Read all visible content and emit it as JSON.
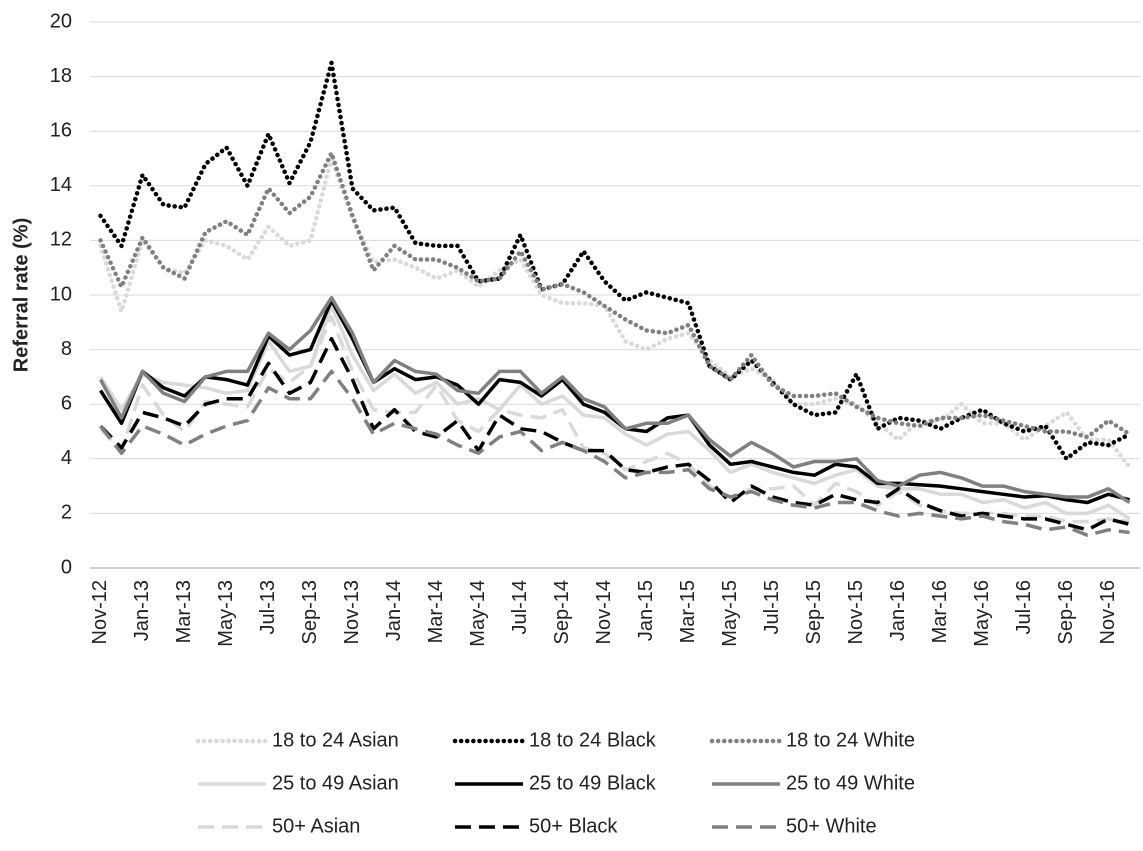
{
  "chart_data": {
    "type": "line",
    "y_label": "Referral rate (%)",
    "categories": [
      "Nov-12",
      null,
      "Jan-13",
      null,
      "Mar-13",
      null,
      "May-13",
      null,
      "Jul-13",
      null,
      "Sep-13",
      null,
      "Nov-13",
      null,
      "Jan-14",
      null,
      "Mar-14",
      null,
      "May-14",
      null,
      "Jul-14",
      null,
      "Sep-14",
      null,
      "Nov-14",
      null,
      "Jan-15",
      null,
      "Mar-15",
      null,
      "May-15",
      null,
      "Jul-15",
      null,
      "Sep-15",
      null,
      "Nov-15",
      null,
      "Jan-16",
      null,
      "Mar-16",
      null,
      "May-16",
      null,
      "Jul-16",
      null,
      "Sep-16",
      null,
      "Nov-16",
      null
    ],
    "ylim": [
      0,
      20
    ],
    "yticks": [
      0,
      2,
      4,
      6,
      8,
      10,
      12,
      14,
      16,
      18,
      20
    ],
    "grid": true,
    "series": [
      {
        "name": "18 to 24 Asian",
        "color": "#d9d9d9",
        "style": "dotted",
        "values": [
          11.8,
          9.4,
          12.0,
          11.0,
          10.8,
          12.0,
          11.8,
          11.3,
          12.5,
          11.8,
          12.0,
          15.0,
          12.8,
          11.2,
          11.3,
          11.0,
          10.6,
          10.9,
          10.3,
          10.9,
          11.3,
          10.0,
          9.7,
          9.7,
          9.6,
          8.3,
          8.0,
          8.4,
          8.6,
          7.6,
          7.0,
          7.3,
          6.9,
          6.0,
          6.0,
          6.2,
          6.0,
          5.3,
          4.7,
          5.4,
          5.4,
          6.0,
          5.3,
          5.3,
          4.7,
          5.2,
          5.7,
          4.7,
          4.7,
          3.7
        ]
      },
      {
        "name": "18 to 24 Black",
        "color": "#000000",
        "style": "dotted",
        "values": [
          12.9,
          11.8,
          14.4,
          13.3,
          13.2,
          14.8,
          15.4,
          14.0,
          15.9,
          14.1,
          15.6,
          18.5,
          13.9,
          13.1,
          13.2,
          11.9,
          11.8,
          11.8,
          10.5,
          10.6,
          12.2,
          10.2,
          10.4,
          11.6,
          10.5,
          9.8,
          10.1,
          9.9,
          9.7,
          7.4,
          6.9,
          7.6,
          6.8,
          6.0,
          5.6,
          5.7,
          7.1,
          5.1,
          5.5,
          5.4,
          5.1,
          5.5,
          5.8,
          5.3,
          5.0,
          5.2,
          4.0,
          4.6,
          4.5,
          4.9
        ]
      },
      {
        "name": "18 to 24 White",
        "color": "#808080",
        "style": "dotted",
        "values": [
          12.0,
          10.3,
          12.1,
          11.0,
          10.6,
          12.3,
          12.7,
          12.2,
          13.9,
          13.0,
          13.6,
          15.2,
          12.9,
          10.9,
          11.8,
          11.3,
          11.3,
          11.0,
          10.5,
          10.6,
          11.6,
          10.2,
          10.4,
          10.1,
          9.6,
          9.1,
          8.7,
          8.6,
          8.9,
          7.4,
          6.9,
          7.8,
          6.7,
          6.3,
          6.3,
          6.4,
          5.9,
          5.5,
          5.3,
          5.2,
          5.5,
          5.5,
          5.6,
          5.4,
          5.2,
          5.0,
          5.0,
          4.8,
          5.4,
          4.9
        ]
      },
      {
        "name": "25 to 49 Asian",
        "color": "#d9d9d9",
        "style": "solid",
        "values": [
          7.0,
          5.8,
          7.1,
          6.8,
          6.7,
          6.6,
          6.4,
          6.5,
          8.3,
          7.2,
          7.4,
          9.6,
          7.8,
          6.5,
          7.1,
          6.4,
          6.8,
          6.0,
          6.2,
          5.8,
          6.7,
          6.0,
          6.3,
          5.6,
          5.5,
          4.9,
          4.5,
          4.9,
          5.0,
          4.3,
          3.5,
          3.8,
          3.5,
          3.3,
          3.1,
          3.4,
          3.6,
          3.0,
          2.9,
          2.9,
          2.7,
          2.7,
          2.4,
          2.5,
          2.2,
          2.4,
          2.0,
          2.0,
          2.3,
          1.8
        ]
      },
      {
        "name": "25 to 49 Black",
        "color": "#000000",
        "style": "solid",
        "values": [
          6.5,
          5.3,
          7.2,
          6.6,
          6.3,
          7.0,
          6.9,
          6.7,
          8.5,
          7.8,
          8.0,
          9.8,
          8.4,
          6.8,
          7.3,
          6.9,
          7.0,
          6.7,
          6.0,
          6.9,
          6.8,
          6.3,
          6.9,
          6.0,
          5.7,
          5.1,
          5.0,
          5.5,
          5.6,
          4.5,
          3.8,
          3.9,
          3.7,
          3.5,
          3.4,
          3.8,
          3.7,
          3.1,
          3.1,
          3.05,
          3.0,
          2.9,
          2.8,
          2.7,
          2.6,
          2.65,
          2.5,
          2.4,
          2.7,
          2.5
        ]
      },
      {
        "name": "25 to 49 White",
        "color": "#808080",
        "style": "solid",
        "values": [
          6.9,
          5.5,
          7.2,
          6.4,
          6.1,
          7.0,
          7.2,
          7.2,
          8.6,
          8.0,
          8.7,
          9.9,
          8.6,
          6.8,
          7.6,
          7.2,
          7.1,
          6.5,
          6.4,
          7.2,
          7.2,
          6.4,
          7.0,
          6.2,
          5.9,
          5.1,
          5.3,
          5.3,
          5.6,
          4.7,
          4.1,
          4.6,
          4.2,
          3.7,
          3.9,
          3.9,
          4.0,
          3.2,
          3.0,
          3.4,
          3.5,
          3.3,
          3.0,
          3.0,
          2.8,
          2.7,
          2.6,
          2.6,
          2.9,
          2.4
        ]
      },
      {
        "name": "50+ Asian",
        "color": "#d9d9d9",
        "style": "dashed",
        "values": [
          5.1,
          4.3,
          6.7,
          5.6,
          5.0,
          6.1,
          6.0,
          5.9,
          7.3,
          6.8,
          7.4,
          9.2,
          7.2,
          5.8,
          5.7,
          5.7,
          6.7,
          5.4,
          5.0,
          5.8,
          5.6,
          5.5,
          5.8,
          4.4,
          4.2,
          3.6,
          3.9,
          4.2,
          3.8,
          3.0,
          2.6,
          2.9,
          2.9,
          3.0,
          2.3,
          3.1,
          2.8,
          2.3,
          2.8,
          2.3,
          2.1,
          2.0,
          2.0,
          2.0,
          1.9,
          1.9,
          1.7,
          1.7,
          1.8,
          1.7
        ]
      },
      {
        "name": "50+ Black",
        "color": "#000000",
        "style": "dashed",
        "values": [
          5.2,
          4.4,
          5.7,
          5.5,
          5.2,
          6.0,
          6.2,
          6.2,
          7.5,
          6.4,
          6.8,
          8.4,
          6.9,
          5.1,
          5.8,
          5.0,
          4.8,
          5.4,
          4.3,
          5.6,
          5.1,
          5.0,
          4.6,
          4.3,
          4.3,
          3.6,
          3.5,
          3.7,
          3.8,
          3.2,
          2.4,
          3.0,
          2.6,
          2.4,
          2.3,
          2.7,
          2.5,
          2.4,
          2.9,
          2.4,
          2.1,
          1.9,
          2.0,
          1.9,
          1.8,
          1.8,
          1.6,
          1.4,
          1.8,
          1.6
        ]
      },
      {
        "name": "50+ White",
        "color": "#808080",
        "style": "dashed",
        "values": [
          5.2,
          4.2,
          5.2,
          4.9,
          4.5,
          4.9,
          5.2,
          5.4,
          6.6,
          6.2,
          6.2,
          7.2,
          6.2,
          4.9,
          5.3,
          5.1,
          4.9,
          4.5,
          4.2,
          4.8,
          5.0,
          4.3,
          4.6,
          4.3,
          3.9,
          3.3,
          3.5,
          3.5,
          3.6,
          2.9,
          2.6,
          2.8,
          2.5,
          2.3,
          2.2,
          2.4,
          2.4,
          2.1,
          1.9,
          2.0,
          1.9,
          1.8,
          1.9,
          1.7,
          1.6,
          1.4,
          1.5,
          1.2,
          1.4,
          1.3
        ]
      }
    ]
  }
}
